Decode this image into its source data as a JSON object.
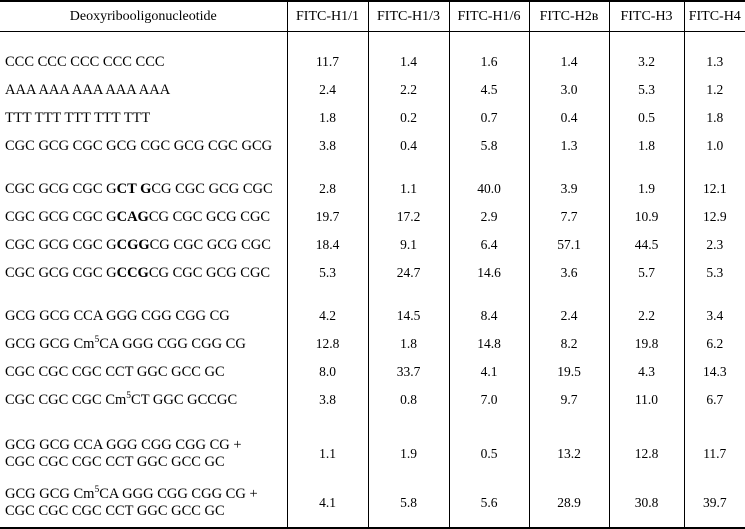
{
  "table": {
    "header": {
      "sequence_column": "Deoxyribooligonucleotide",
      "value_columns": [
        "FITC-H1/1",
        "FITC-H1/3",
        "FITC-H1/6",
        "FITC-H2в",
        "FITC-H3",
        "FITC-H4"
      ]
    },
    "groups": [
      {
        "rows": [
          {
            "sequence_lines": [
              [
                {
                  "t": "CCC CCC CCC CCC CCC"
                }
              ]
            ],
            "values": [
              "11.7",
              "1.4",
              "1.6",
              "1.4",
              "3.2",
              "1.3"
            ]
          },
          {
            "sequence_lines": [
              [
                {
                  "t": "AAA AAA AAA AAA AAA"
                }
              ]
            ],
            "values": [
              "2.4",
              "2.2",
              "4.5",
              "3.0",
              "5.3",
              "1.2"
            ]
          },
          {
            "sequence_lines": [
              [
                {
                  "t": "TTT TTT TTT TTT TTT"
                }
              ]
            ],
            "values": [
              "1.8",
              "0.2",
              "0.7",
              "0.4",
              "0.5",
              "1.8"
            ]
          },
          {
            "sequence_lines": [
              [
                {
                  "t": "CGC GCG CGC GCG CGC GCG CGC GCG"
                }
              ]
            ],
            "values": [
              "3.8",
              "0.4",
              "5.8",
              "1.3",
              "1.8",
              "1.0"
            ]
          }
        ]
      },
      {
        "rows": [
          {
            "sequence_lines": [
              [
                {
                  "t": "CGC GCG CGC G"
                },
                {
                  "t": "CT G",
                  "b": true
                },
                {
                  "t": "CG CGC GCG CGC"
                }
              ]
            ],
            "values": [
              "2.8",
              "1.1",
              "40.0",
              "3.9",
              "1.9",
              "12.1"
            ]
          },
          {
            "sequence_lines": [
              [
                {
                  "t": "CGC GCG CGC G"
                },
                {
                  "t": "CAG",
                  "b": true
                },
                {
                  "t": "CG CGC GCG CGC"
                }
              ]
            ],
            "values": [
              "19.7",
              "17.2",
              "2.9",
              "7.7",
              "10.9",
              "12.9"
            ]
          },
          {
            "sequence_lines": [
              [
                {
                  "t": "CGC GCG CGC G"
                },
                {
                  "t": "CGG",
                  "b": true
                },
                {
                  "t": "CG CGC GCG CGC"
                }
              ]
            ],
            "values": [
              "18.4",
              "9.1",
              "6.4",
              "57.1",
              "44.5",
              "2.3"
            ]
          },
          {
            "sequence_lines": [
              [
                {
                  "t": "CGC GCG CGC G"
                },
                {
                  "t": "CCG",
                  "b": true
                },
                {
                  "t": "CG CGC GCG CGC"
                }
              ]
            ],
            "values": [
              "5.3",
              "24.7",
              "14.6",
              "3.6",
              "5.7",
              "5.3"
            ]
          }
        ]
      },
      {
        "rows": [
          {
            "sequence_lines": [
              [
                {
                  "t": "GCG GCG CCA GGG CGG CGG CG"
                }
              ]
            ],
            "values": [
              "4.2",
              "14.5",
              "8.4",
              "2.4",
              "2.2",
              "3.4"
            ]
          },
          {
            "sequence_lines": [
              [
                {
                  "t": "GCG GCG Cm"
                },
                {
                  "t": "5",
                  "sup": true
                },
                {
                  "t": "CA GGG CGG CGG CG"
                }
              ]
            ],
            "values": [
              "12.8",
              "1.8",
              "14.8",
              "8.2",
              "19.8",
              "6.2"
            ]
          },
          {
            "sequence_lines": [
              [
                {
                  "t": "CGC CGC CGC CCT GGC GCC GC"
                }
              ]
            ],
            "values": [
              "8.0",
              "33.7",
              "4.1",
              "19.5",
              "4.3",
              "14.3"
            ]
          },
          {
            "sequence_lines": [
              [
                {
                  "t": "CGC CGC CGC Cm"
                },
                {
                  "t": "5",
                  "sup": true
                },
                {
                  "t": "CT GGC GCCGC"
                }
              ]
            ],
            "values": [
              "3.8",
              "0.8",
              "7.0",
              "9.7",
              "11.0",
              "6.7"
            ]
          }
        ]
      },
      {
        "rows": [
          {
            "sequence_lines": [
              [
                {
                  "t": "GCG GCG CCA GGG CGG CGG CG +"
                }
              ],
              [
                {
                  "t": "CGC CGC CGC CCT GGC GCC GC"
                }
              ]
            ],
            "values": [
              "1.1",
              "1.9",
              "0.5",
              "13.2",
              "12.8",
              "11.7"
            ]
          },
          {
            "sequence_lines": [
              [
                {
                  "t": "GCG GCG Cm"
                },
                {
                  "t": "5",
                  "sup": true
                },
                {
                  "t": "CA GGG CGG CGG CG +"
                }
              ],
              [
                {
                  "t": "CGC CGC CGC CCT GGC GCC GC"
                }
              ]
            ],
            "values": [
              "4.1",
              "5.8",
              "5.6",
              "28.9",
              "30.8",
              "39.7"
            ]
          }
        ]
      }
    ]
  },
  "colors": {
    "background": "#ffffff",
    "text": "#000000",
    "border": "#000000"
  }
}
